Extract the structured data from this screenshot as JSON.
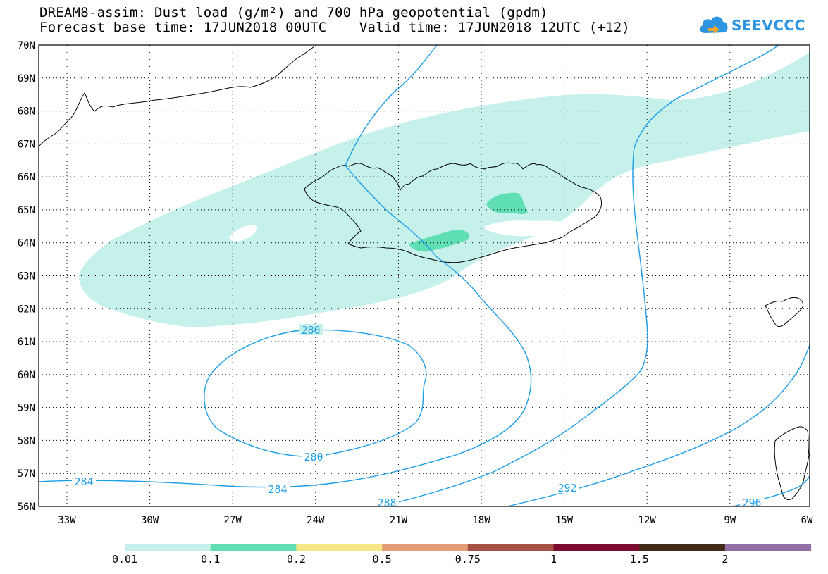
{
  "title": {
    "line1": "DREAM8-assim: Dust load (g/m²) and 700 hPa geopotential (gpdm)",
    "line2": "Forecast base time: 17JUN2018 00UTC    Valid time: 17JUN2018 12UTC (+12)"
  },
  "logo": {
    "text": "SEEVCCC",
    "icon": "cloud-icon",
    "color": "#2c94e0"
  },
  "map": {
    "lon_labels": [
      "33W",
      "30W",
      "27W",
      "24W",
      "21W",
      "18W",
      "15W",
      "12W",
      "9W",
      "6W"
    ],
    "lat_labels": [
      "70N",
      "69N",
      "68N",
      "67N",
      "66N",
      "65N",
      "64N",
      "63N",
      "62N",
      "61N",
      "60N",
      "59N",
      "58N",
      "57N",
      "56N"
    ],
    "lon_range": [
      "34.5W",
      "6W"
    ],
    "lat_range": [
      "56N",
      "70N"
    ],
    "grid": "dotted",
    "contour_color": "#1c9ee8",
    "contour_labels": [
      {
        "value": "280",
        "position": "north"
      },
      {
        "value": "280",
        "position": "south"
      },
      {
        "value": "284",
        "position": "west"
      },
      {
        "value": "284",
        "position": "center"
      },
      {
        "value": "288",
        "position": "bottom"
      },
      {
        "value": "292",
        "position": "bottom-right"
      },
      {
        "value": "296",
        "position": "bottom-right-edge"
      }
    ]
  },
  "legend": {
    "labels": [
      "0.01",
      "0.1",
      "0.2",
      "0.5",
      "0.75",
      "1",
      "1.5",
      "2"
    ],
    "colors": [
      "#c6f1ea",
      "#5fdfb3",
      "#f5e787",
      "#e39b78",
      "#a85245",
      "#7b0c2f",
      "#3f2a16",
      "#946fa6"
    ]
  }
}
